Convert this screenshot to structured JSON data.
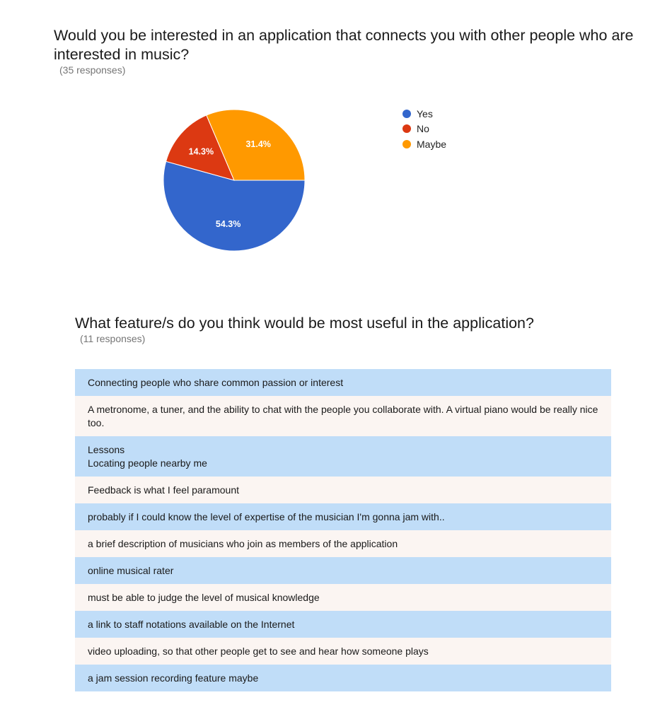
{
  "q1": {
    "title": "Would you be interested in an application that connects you with other people who are interested in music?",
    "responses": "(35 responses)"
  },
  "chart_data": {
    "type": "pie",
    "labels": [
      "Yes",
      "No",
      "Maybe"
    ],
    "values": [
      54.3,
      14.3,
      31.4
    ],
    "value_labels": [
      "54.3%",
      "14.3%",
      "31.4%"
    ],
    "colors": [
      "#3366cc",
      "#dc3912",
      "#ff9900"
    ],
    "legend_position": "right"
  },
  "q2": {
    "title": "What feature/s do you think would be most useful in the application?",
    "responses": "(11 responses)",
    "items": [
      "Connecting people who share common passion or interest",
      "A metronome, a tuner, and the ability to chat with the people you collaborate with. A virtual piano would be really nice too.",
      "Lessons\nLocating people nearby me",
      "Feedback is what I feel paramount",
      "probably if I could know the level of expertise of the musician I'm gonna jam with..",
      "a brief description of musicians who join as members of the application",
      "online musical rater",
      "must be able to judge the level of musical knowledge",
      "a link to staff notations available on the Internet",
      "video uploading, so that other people get to see and hear how someone plays",
      "a jam session recording feature maybe"
    ]
  }
}
